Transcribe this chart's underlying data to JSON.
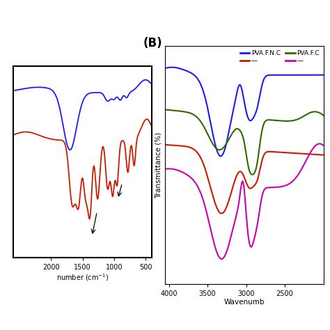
{
  "panel_A": {
    "xlabel": "number (cm⁻¹)",
    "blue_color": "#1a1aff",
    "red_color": "#cc1a00"
  },
  "panel_B": {
    "label": "(B)",
    "xlabel": "Wavenumb",
    "ylabel": "Transmittance (%)",
    "blue_color": "#1a1aff",
    "red_color": "#cc1a00",
    "green_color": "#2d6a00",
    "magenta_color": "#cc00aa",
    "legend_line1_left": "PVA.F.N.C",
    "legend_line1_right": "",
    "legend_line2_left": "PVA.F.C",
    "legend_line2_right": ""
  }
}
